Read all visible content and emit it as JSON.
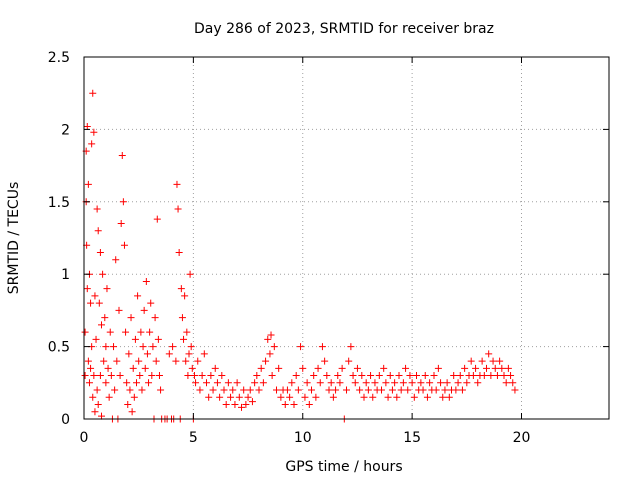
{
  "chart_data": {
    "type": "scatter",
    "title": "Day 286 of 2023, SRMTID for receiver braz",
    "xlabel": "GPS time / hours",
    "ylabel": "SRMTID / TECUs",
    "xlim": [
      0,
      24
    ],
    "ylim": [
      0,
      2.5
    ],
    "xticks": [
      0,
      5,
      10,
      15,
      20
    ],
    "yticks": [
      0,
      0.5,
      1,
      1.5,
      2,
      2.5
    ],
    "xtick_labels": [
      "0",
      "5",
      "10",
      "15",
      "20"
    ],
    "ytick_labels": [
      "0",
      "0.5",
      "1",
      "1.5",
      "2",
      "2.5"
    ],
    "grid": true,
    "marker": "+",
    "color": "#ff0000",
    "series": [
      {
        "name": "SRMTID",
        "points": [
          [
            0.05,
            0.3
          ],
          [
            0.05,
            0.6
          ],
          [
            0.1,
            1.85
          ],
          [
            0.1,
            1.5
          ],
          [
            0.12,
            1.2
          ],
          [
            0.15,
            2.02
          ],
          [
            0.15,
            0.9
          ],
          [
            0.2,
            1.62
          ],
          [
            0.2,
            0.4
          ],
          [
            0.25,
            1.0
          ],
          [
            0.25,
            0.25
          ],
          [
            0.3,
            0.8
          ],
          [
            0.3,
            0.35
          ],
          [
            0.35,
            1.9
          ],
          [
            0.35,
            0.5
          ],
          [
            0.4,
            2.25
          ],
          [
            0.4,
            0.15
          ],
          [
            0.45,
            1.98
          ],
          [
            0.45,
            0.3
          ],
          [
            0.5,
            0.85
          ],
          [
            0.5,
            0.05
          ],
          [
            0.55,
            0.55
          ],
          [
            0.6,
            1.45
          ],
          [
            0.6,
            0.2
          ],
          [
            0.65,
            1.3
          ],
          [
            0.65,
            0.1
          ],
          [
            0.7,
            0.8
          ],
          [
            0.75,
            1.15
          ],
          [
            0.75,
            0.3
          ],
          [
            0.8,
            0.65
          ],
          [
            0.8,
            0.02
          ],
          [
            0.85,
            1.0
          ],
          [
            0.9,
            0.4
          ],
          [
            0.95,
            0.7
          ],
          [
            1.0,
            0.25
          ],
          [
            1.0,
            0.5
          ],
          [
            1.05,
            0.9
          ],
          [
            1.1,
            0.35
          ],
          [
            1.15,
            0.15
          ],
          [
            1.2,
            0.6
          ],
          [
            1.25,
            0.3
          ],
          [
            1.3,
            0.0
          ],
          [
            1.35,
            0.5
          ],
          [
            1.4,
            0.2
          ],
          [
            1.45,
            1.1
          ],
          [
            1.5,
            0.4
          ],
          [
            1.55,
            0.0
          ],
          [
            1.6,
            0.75
          ],
          [
            1.65,
            0.3
          ],
          [
            1.7,
            1.35
          ],
          [
            1.75,
            1.82
          ],
          [
            1.8,
            1.5
          ],
          [
            1.85,
            1.2
          ],
          [
            1.9,
            0.6
          ],
          [
            1.95,
            0.25
          ],
          [
            2.0,
            0.1
          ],
          [
            2.05,
            0.45
          ],
          [
            2.1,
            0.2
          ],
          [
            2.15,
            0.7
          ],
          [
            2.2,
            0.05
          ],
          [
            2.25,
            0.35
          ],
          [
            2.3,
            0.15
          ],
          [
            2.35,
            0.55
          ],
          [
            2.4,
            0.25
          ],
          [
            2.45,
            0.85
          ],
          [
            2.5,
            0.4
          ],
          [
            2.55,
            0.3
          ],
          [
            2.6,
            0.6
          ],
          [
            2.65,
            0.2
          ],
          [
            2.7,
            0.5
          ],
          [
            2.75,
            0.75
          ],
          [
            2.8,
            0.35
          ],
          [
            2.85,
            0.95
          ],
          [
            2.9,
            0.45
          ],
          [
            2.95,
            0.25
          ],
          [
            3.0,
            0.6
          ],
          [
            3.05,
            0.8
          ],
          [
            3.1,
            0.3
          ],
          [
            3.15,
            0.5
          ],
          [
            3.2,
            0.0
          ],
          [
            3.25,
            0.7
          ],
          [
            3.3,
            0.4
          ],
          [
            3.35,
            1.38
          ],
          [
            3.4,
            0.55
          ],
          [
            3.45,
            0.3
          ],
          [
            3.5,
            0.2
          ],
          [
            3.55,
            0.0
          ],
          [
            3.7,
            0.0
          ],
          [
            3.8,
            0.0
          ],
          [
            3.9,
            0.45
          ],
          [
            4.0,
            0.0
          ],
          [
            4.05,
            0.5
          ],
          [
            4.1,
            0.0
          ],
          [
            4.2,
            0.4
          ],
          [
            4.25,
            1.62
          ],
          [
            4.3,
            1.45
          ],
          [
            4.35,
            1.15
          ],
          [
            4.4,
            0.0
          ],
          [
            4.45,
            0.9
          ],
          [
            4.5,
            0.7
          ],
          [
            4.55,
            0.55
          ],
          [
            4.6,
            0.85
          ],
          [
            4.65,
            0.4
          ],
          [
            4.7,
            0.6
          ],
          [
            4.75,
            0.3
          ],
          [
            4.8,
            0.45
          ],
          [
            4.85,
            1.0
          ],
          [
            4.9,
            0.5
          ],
          [
            4.95,
            0.35
          ],
          [
            5.0,
            0.0
          ],
          [
            5.05,
            0.3
          ],
          [
            5.1,
            0.25
          ],
          [
            5.2,
            0.4
          ],
          [
            5.3,
            0.2
          ],
          [
            5.4,
            0.3
          ],
          [
            5.5,
            0.45
          ],
          [
            5.6,
            0.25
          ],
          [
            5.7,
            0.15
          ],
          [
            5.8,
            0.3
          ],
          [
            5.9,
            0.2
          ],
          [
            6.0,
            0.35
          ],
          [
            6.1,
            0.25
          ],
          [
            6.2,
            0.15
          ],
          [
            6.3,
            0.3
          ],
          [
            6.4,
            0.2
          ],
          [
            6.5,
            0.1
          ],
          [
            6.6,
            0.25
          ],
          [
            6.7,
            0.15
          ],
          [
            6.8,
            0.2
          ],
          [
            6.9,
            0.1
          ],
          [
            7.0,
            0.25
          ],
          [
            7.1,
            0.15
          ],
          [
            7.2,
            0.08
          ],
          [
            7.3,
            0.2
          ],
          [
            7.4,
            0.1
          ],
          [
            7.5,
            0.15
          ],
          [
            7.6,
            0.2
          ],
          [
            7.7,
            0.12
          ],
          [
            7.8,
            0.25
          ],
          [
            7.9,
            0.3
          ],
          [
            8.0,
            0.2
          ],
          [
            8.1,
            0.35
          ],
          [
            8.2,
            0.25
          ],
          [
            8.3,
            0.4
          ],
          [
            8.4,
            0.55
          ],
          [
            8.5,
            0.45
          ],
          [
            8.55,
            0.58
          ],
          [
            8.6,
            0.3
          ],
          [
            8.7,
            0.5
          ],
          [
            8.8,
            0.2
          ],
          [
            8.9,
            0.35
          ],
          [
            9.0,
            0.15
          ],
          [
            9.1,
            0.2
          ],
          [
            9.2,
            0.1
          ],
          [
            9.3,
            0.2
          ],
          [
            9.4,
            0.15
          ],
          [
            9.5,
            0.25
          ],
          [
            9.6,
            0.1
          ],
          [
            9.7,
            0.3
          ],
          [
            9.8,
            0.2
          ],
          [
            9.9,
            0.5
          ],
          [
            10.0,
            0.35
          ],
          [
            10.1,
            0.15
          ],
          [
            10.2,
            0.25
          ],
          [
            10.3,
            0.1
          ],
          [
            10.4,
            0.2
          ],
          [
            10.5,
            0.3
          ],
          [
            10.6,
            0.15
          ],
          [
            10.7,
            0.35
          ],
          [
            10.8,
            0.25
          ],
          [
            10.9,
            0.5
          ],
          [
            11.0,
            0.4
          ],
          [
            11.1,
            0.3
          ],
          [
            11.2,
            0.2
          ],
          [
            11.3,
            0.25
          ],
          [
            11.4,
            0.15
          ],
          [
            11.5,
            0.2
          ],
          [
            11.6,
            0.3
          ],
          [
            11.7,
            0.25
          ],
          [
            11.8,
            0.35
          ],
          [
            11.9,
            0.0
          ],
          [
            12.0,
            0.2
          ],
          [
            12.1,
            0.4
          ],
          [
            12.2,
            0.5
          ],
          [
            12.3,
            0.3
          ],
          [
            12.4,
            0.25
          ],
          [
            12.5,
            0.35
          ],
          [
            12.6,
            0.2
          ],
          [
            12.7,
            0.3
          ],
          [
            12.8,
            0.15
          ],
          [
            12.9,
            0.25
          ],
          [
            13.0,
            0.2
          ],
          [
            13.1,
            0.3
          ],
          [
            13.2,
            0.15
          ],
          [
            13.3,
            0.25
          ],
          [
            13.4,
            0.2
          ],
          [
            13.5,
            0.3
          ],
          [
            13.6,
            0.2
          ],
          [
            13.7,
            0.35
          ],
          [
            13.8,
            0.25
          ],
          [
            13.9,
            0.15
          ],
          [
            14.0,
            0.3
          ],
          [
            14.1,
            0.2
          ],
          [
            14.2,
            0.25
          ],
          [
            14.3,
            0.15
          ],
          [
            14.4,
            0.3
          ],
          [
            14.5,
            0.2
          ],
          [
            14.6,
            0.25
          ],
          [
            14.7,
            0.35
          ],
          [
            14.8,
            0.2
          ],
          [
            14.9,
            0.3
          ],
          [
            15.0,
            0.25
          ],
          [
            15.1,
            0.15
          ],
          [
            15.2,
            0.3
          ],
          [
            15.3,
            0.2
          ],
          [
            15.4,
            0.25
          ],
          [
            15.5,
            0.2
          ],
          [
            15.6,
            0.3
          ],
          [
            15.7,
            0.15
          ],
          [
            15.8,
            0.25
          ],
          [
            15.9,
            0.2
          ],
          [
            16.0,
            0.3
          ],
          [
            16.1,
            0.2
          ],
          [
            16.2,
            0.35
          ],
          [
            16.3,
            0.25
          ],
          [
            16.4,
            0.15
          ],
          [
            16.5,
            0.2
          ],
          [
            16.6,
            0.25
          ],
          [
            16.7,
            0.15
          ],
          [
            16.8,
            0.2
          ],
          [
            16.9,
            0.3
          ],
          [
            17.0,
            0.2
          ],
          [
            17.1,
            0.25
          ],
          [
            17.2,
            0.3
          ],
          [
            17.3,
            0.2
          ],
          [
            17.4,
            0.35
          ],
          [
            17.5,
            0.25
          ],
          [
            17.6,
            0.3
          ],
          [
            17.7,
            0.4
          ],
          [
            17.8,
            0.3
          ],
          [
            17.9,
            0.35
          ],
          [
            18.0,
            0.25
          ],
          [
            18.1,
            0.3
          ],
          [
            18.2,
            0.4
          ],
          [
            18.3,
            0.3
          ],
          [
            18.4,
            0.35
          ],
          [
            18.5,
            0.45
          ],
          [
            18.6,
            0.3
          ],
          [
            18.7,
            0.4
          ],
          [
            18.8,
            0.35
          ],
          [
            18.9,
            0.3
          ],
          [
            19.0,
            0.4
          ],
          [
            19.1,
            0.35
          ],
          [
            19.2,
            0.3
          ],
          [
            19.3,
            0.25
          ],
          [
            19.4,
            0.35
          ],
          [
            19.5,
            0.3
          ],
          [
            19.6,
            0.25
          ],
          [
            19.7,
            0.2
          ]
        ]
      }
    ]
  }
}
